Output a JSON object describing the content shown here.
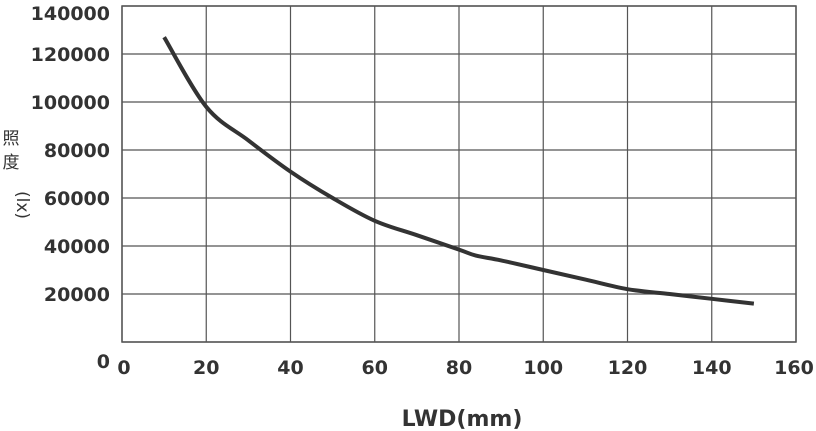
{
  "chart_data": {
    "type": "line",
    "xlabel": "LWD(mm)",
    "ylabel_chars": [
      "照",
      "度"
    ],
    "ylabel_unit": "(lx)",
    "xlim": [
      0,
      160
    ],
    "ylim": [
      0,
      140000
    ],
    "x_ticks": [
      "0",
      "20",
      "40",
      "60",
      "80",
      "100",
      "120",
      "140",
      "160"
    ],
    "y_ticks": [
      "0",
      "20000",
      "40000",
      "60000",
      "80000",
      "100000",
      "120000",
      "140000"
    ],
    "grid": true,
    "series": [
      {
        "color": "#333333",
        "x": [
          10,
          20,
          30,
          40,
          50,
          60,
          70,
          80,
          84,
          90,
          100,
          110,
          120,
          130,
          140,
          150
        ],
        "y": [
          127000,
          98000,
          84000,
          71000,
          60000,
          50500,
          44500,
          38500,
          36000,
          34000,
          30000,
          26000,
          22000,
          20000,
          18000,
          16000
        ]
      }
    ]
  }
}
